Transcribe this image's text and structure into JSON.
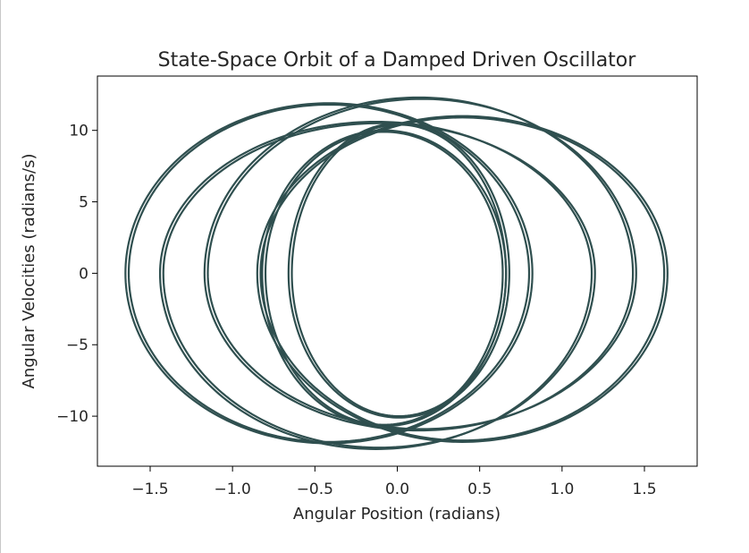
{
  "chart_data": {
    "type": "line",
    "title": "State-Space Orbit of a Damped Driven Oscillator",
    "xlabel": "Angular Position (radians)",
    "ylabel": "Angular Velocities (radians/s)",
    "xlim": [
      -1.82,
      1.82
    ],
    "ylim": [
      -13.5,
      13.8
    ],
    "xticks": [
      -1.5,
      -1.0,
      -0.5,
      0.0,
      0.5,
      1.0,
      1.5
    ],
    "xtick_labels": [
      "−1.5",
      "−1.0",
      "−0.5",
      "0.0",
      "0.5",
      "1.0",
      "1.5"
    ],
    "yticks": [
      10,
      5,
      0,
      -5,
      -10
    ],
    "ytick_labels": [
      "10",
      "5",
      "0",
      "−5",
      "−10"
    ],
    "grid": false,
    "line_color": "#2f4f4f",
    "series": [
      {
        "loops": [
          {
            "x_left": -1.65,
            "x_right": 0.82,
            "v_max": 11.9,
            "v_min": -11.9
          },
          {
            "x_left": -1.63,
            "x_right": 0.8,
            "v_max": 11.8,
            "v_min": -11.8
          },
          {
            "x_left": -1.44,
            "x_right": 1.18,
            "v_max": 10.6,
            "v_min": -12.3
          },
          {
            "x_left": -1.42,
            "x_right": 1.2,
            "v_max": 10.5,
            "v_min": -12.2
          },
          {
            "x_left": -1.17,
            "x_right": 1.43,
            "v_max": 12.3,
            "v_min": -11.0
          },
          {
            "x_left": -1.15,
            "x_right": 1.45,
            "v_max": 12.2,
            "v_min": -10.9
          },
          {
            "x_left": -0.85,
            "x_right": 1.64,
            "v_max": 11.0,
            "v_min": -11.8
          },
          {
            "x_left": -0.83,
            "x_right": 1.62,
            "v_max": 10.9,
            "v_min": -11.7
          },
          {
            "x_left": -0.82,
            "x_right": 0.66,
            "v_max": 10.0,
            "v_min": -10.7
          },
          {
            "x_left": -0.8,
            "x_right": 0.64,
            "v_max": 9.9,
            "v_min": -10.6
          },
          {
            "x_left": -0.64,
            "x_right": 0.66,
            "v_max": 10.4,
            "v_min": -10.0
          },
          {
            "x_left": -0.66,
            "x_right": 0.68,
            "v_max": 10.5,
            "v_min": -10.1
          }
        ]
      }
    ]
  }
}
